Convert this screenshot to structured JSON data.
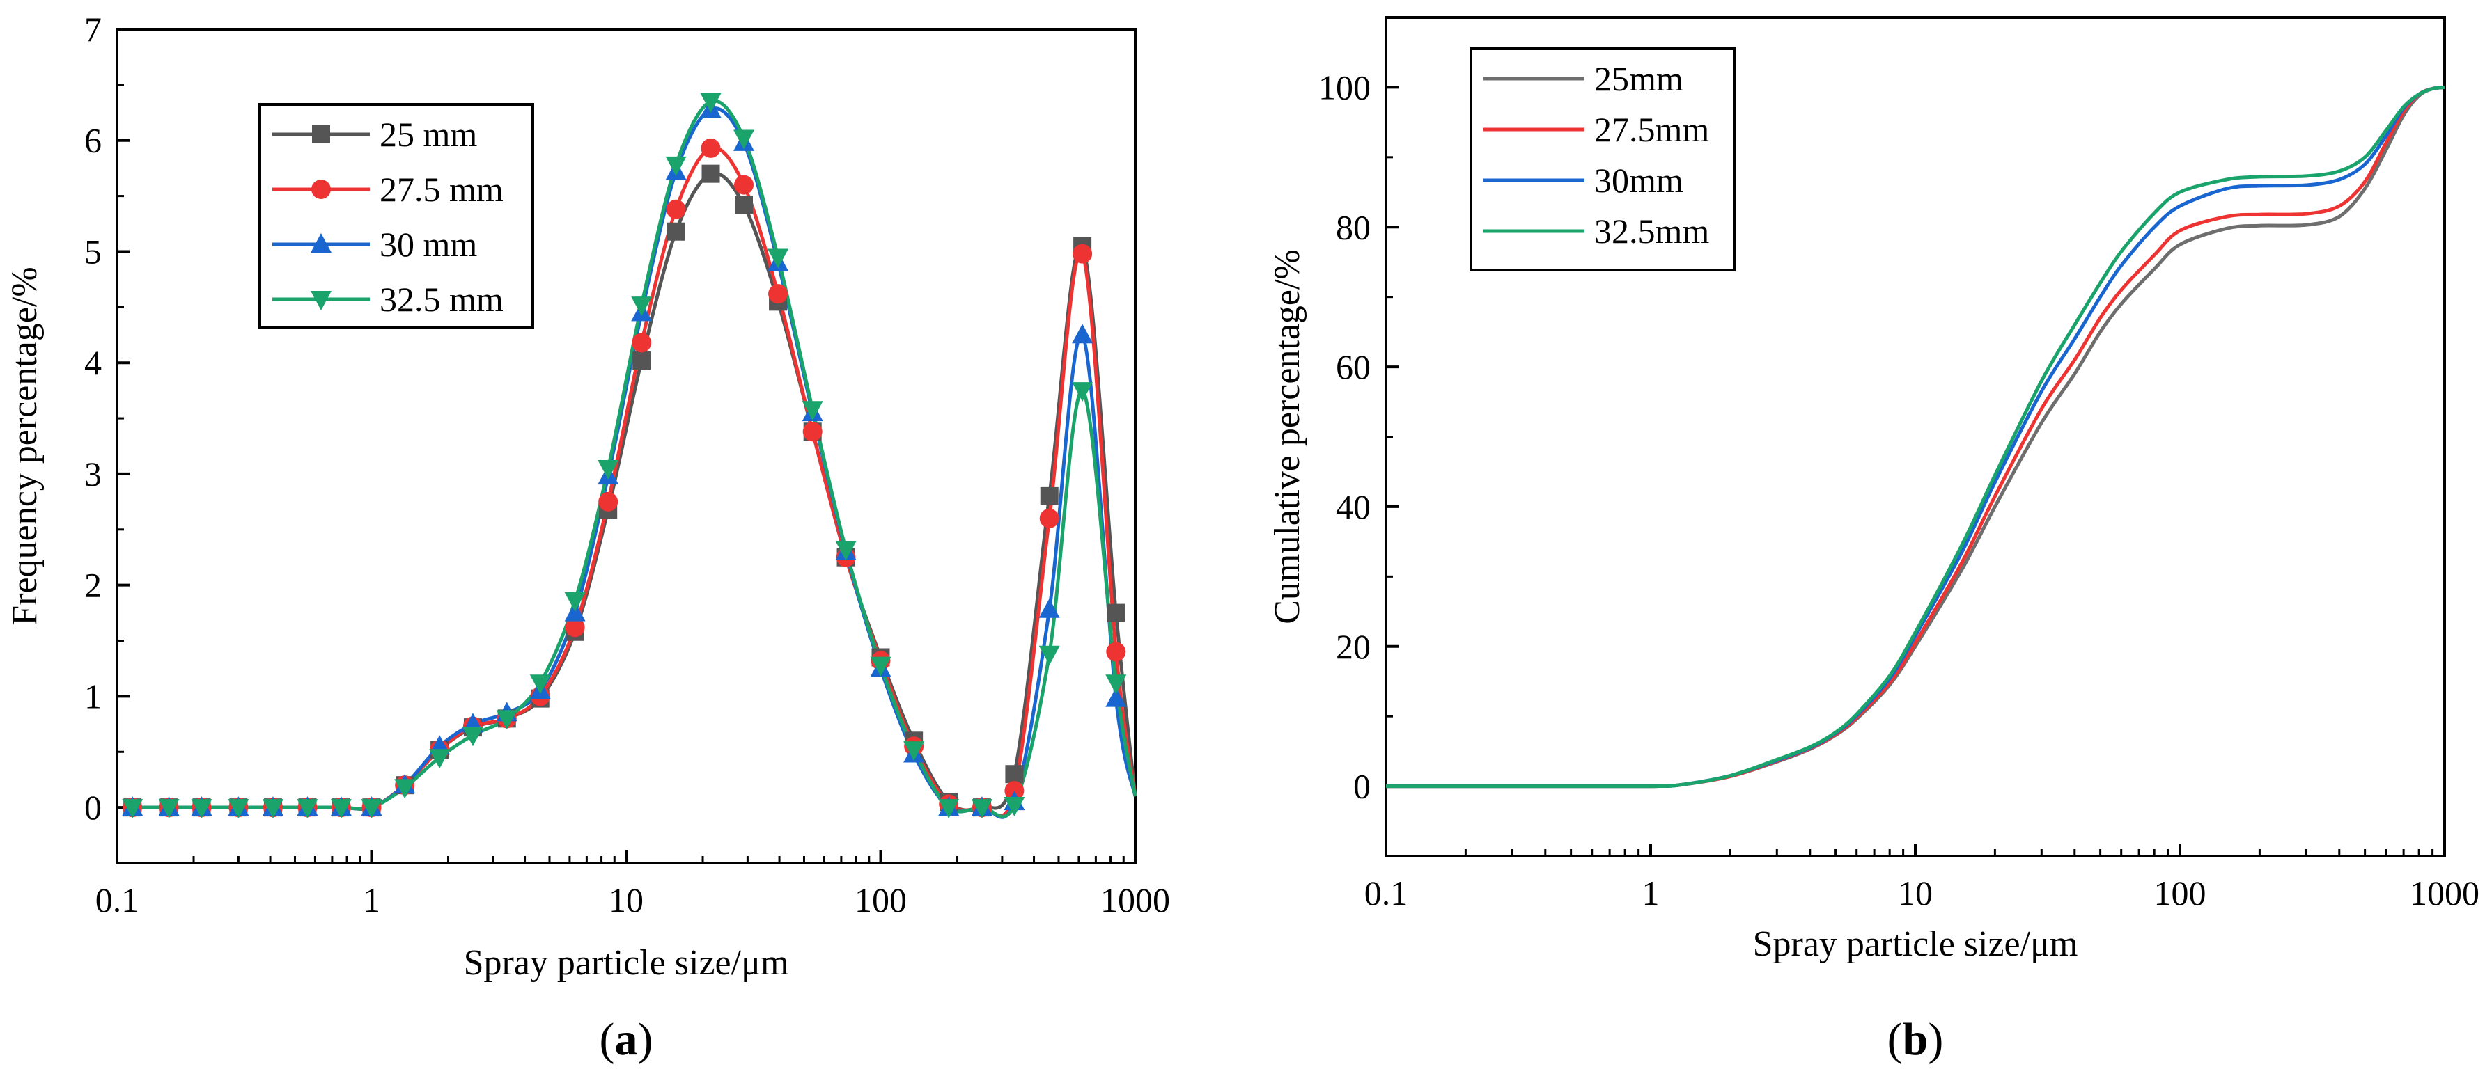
{
  "chart_data": [
    {
      "id": "a",
      "type": "line",
      "panel_label": "(a)",
      "panel_letter": "a",
      "xscale": "log",
      "xlim": [
        0.1,
        1000
      ],
      "ylim": [
        -0.5,
        7
      ],
      "xticks": [
        0.1,
        1,
        10,
        100,
        1000
      ],
      "xtick_labels": [
        "0.1",
        "1",
        "10",
        "100",
        "1000"
      ],
      "yticks": [
        0,
        1,
        2,
        3,
        4,
        5,
        6,
        7
      ],
      "ytick_labels": [
        "0",
        "1",
        "2",
        "3",
        "4",
        "5",
        "6",
        "7"
      ],
      "xlabel": "Spray particle size/μm",
      "ylabel": "Frequency percentage/%",
      "legend_position": "top-left",
      "markers": true,
      "x": [
        0.115,
        0.16,
        0.215,
        0.3,
        0.41,
        0.56,
        0.76,
        1.0,
        1.35,
        1.85,
        2.5,
        3.4,
        4.6,
        6.3,
        8.5,
        11.5,
        15.7,
        21.5,
        29,
        39.5,
        54,
        73,
        100,
        135,
        185,
        250,
        335,
        460,
        620,
        840,
        1000
      ],
      "series": [
        {
          "name": "25 mm",
          "color": "#555555",
          "marker": "square",
          "values": [
            0,
            0,
            0,
            0,
            0,
            0,
            0,
            0,
            0.2,
            0.52,
            0.72,
            0.8,
            0.98,
            1.58,
            2.68,
            4.02,
            5.18,
            5.7,
            5.42,
            4.55,
            3.38,
            2.25,
            1.35,
            0.6,
            0.05,
            0.0,
            0.3,
            2.8,
            5.05,
            1.75,
            0.1
          ]
        },
        {
          "name": "27.5 mm",
          "color": "#ee3333",
          "marker": "circle",
          "values": [
            0,
            0,
            0,
            0,
            0,
            0,
            0,
            0,
            0.2,
            0.52,
            0.73,
            0.8,
            1.0,
            1.62,
            2.75,
            4.18,
            5.38,
            5.93,
            5.6,
            4.62,
            3.38,
            2.25,
            1.32,
            0.55,
            0.03,
            0.0,
            0.15,
            2.6,
            4.98,
            1.4,
            0.1
          ]
        },
        {
          "name": "30 mm",
          "color": "#1a66d1",
          "marker": "triangle-up",
          "values": [
            0,
            0,
            0,
            0,
            0,
            0,
            0,
            0,
            0.2,
            0.55,
            0.75,
            0.85,
            1.05,
            1.75,
            2.98,
            4.45,
            5.72,
            6.28,
            5.98,
            4.9,
            3.55,
            2.3,
            1.25,
            0.48,
            0.0,
            0.0,
            0.05,
            1.78,
            4.25,
            0.98,
            0.1
          ]
        },
        {
          "name": "32.5 mm",
          "color": "#1aa36b",
          "marker": "triangle-down",
          "values": [
            0,
            0,
            0,
            0,
            0,
            0,
            0,
            0,
            0.18,
            0.45,
            0.65,
            0.8,
            1.12,
            1.86,
            3.05,
            4.52,
            5.78,
            6.35,
            6.02,
            4.95,
            3.58,
            2.32,
            1.28,
            0.52,
            0.0,
            0.0,
            0.02,
            1.38,
            3.75,
            1.12,
            0.1
          ]
        }
      ]
    },
    {
      "id": "b",
      "type": "line",
      "panel_label": "(b)",
      "panel_letter": "b",
      "xscale": "log",
      "xlim": [
        0.1,
        1000
      ],
      "ylim": [
        -10,
        110
      ],
      "xticks": [
        0.1,
        1,
        10,
        100,
        1000
      ],
      "xtick_labels": [
        "0.1",
        "1",
        "10",
        "100",
        "1000"
      ],
      "yticks": [
        0,
        20,
        40,
        60,
        80,
        100
      ],
      "ytick_labels": [
        "0",
        "20",
        "40",
        "60",
        "80",
        "100"
      ],
      "xlabel": "Spray particle size/μm",
      "ylabel": "Cumulative percentage/%",
      "legend_position": "top-left",
      "markers": false,
      "x": [
        0.1,
        0.5,
        1.0,
        1.3,
        2,
        3,
        4,
        5,
        6,
        8,
        10,
        15,
        20,
        30,
        40,
        50,
        60,
        80,
        100,
        150,
        200,
        300,
        400,
        500,
        600,
        700,
        800,
        900,
        1000
      ],
      "series": [
        {
          "name": "25mm",
          "color": "#6e6e6e",
          "values": [
            0,
            0,
            0,
            0.2,
            1.4,
            3.5,
            5.3,
            7.3,
            9.6,
            14.5,
            20.0,
            31,
            40,
            52,
            59,
            65,
            69,
            74,
            77.5,
            79.8,
            80.2,
            80.3,
            81.5,
            85.5,
            91,
            96,
            98.8,
            99.8,
            100
          ]
        },
        {
          "name": "27.5mm",
          "color": "#ee3333",
          "values": [
            0,
            0,
            0,
            0.2,
            1.4,
            3.6,
            5.4,
            7.4,
            9.8,
            14.8,
            20.5,
            32,
            41.5,
            54,
            61,
            67,
            71,
            76,
            79.5,
            81.5,
            81.8,
            81.9,
            83,
            86.5,
            92,
            96.5,
            99,
            99.8,
            100
          ]
        },
        {
          "name": "30mm",
          "color": "#1a66d1",
          "values": [
            0,
            0,
            0,
            0.2,
            1.5,
            3.7,
            5.5,
            7.6,
            10.1,
            15.4,
            21.5,
            33.5,
            43.5,
            56.5,
            64,
            70,
            74.5,
            80,
            83,
            85.5,
            85.9,
            86,
            86.8,
            89,
            93,
            97,
            99,
            99.8,
            100
          ]
        },
        {
          "name": "32.5mm",
          "color": "#1aa36b",
          "values": [
            0,
            0,
            0,
            0.2,
            1.5,
            3.8,
            5.6,
            7.7,
            10.3,
            15.8,
            22,
            34.5,
            44.5,
            58,
            66,
            72,
            76.5,
            82,
            85,
            86.8,
            87.2,
            87.3,
            88,
            90,
            93.8,
            97.2,
            99,
            99.8,
            100
          ]
        }
      ]
    }
  ]
}
